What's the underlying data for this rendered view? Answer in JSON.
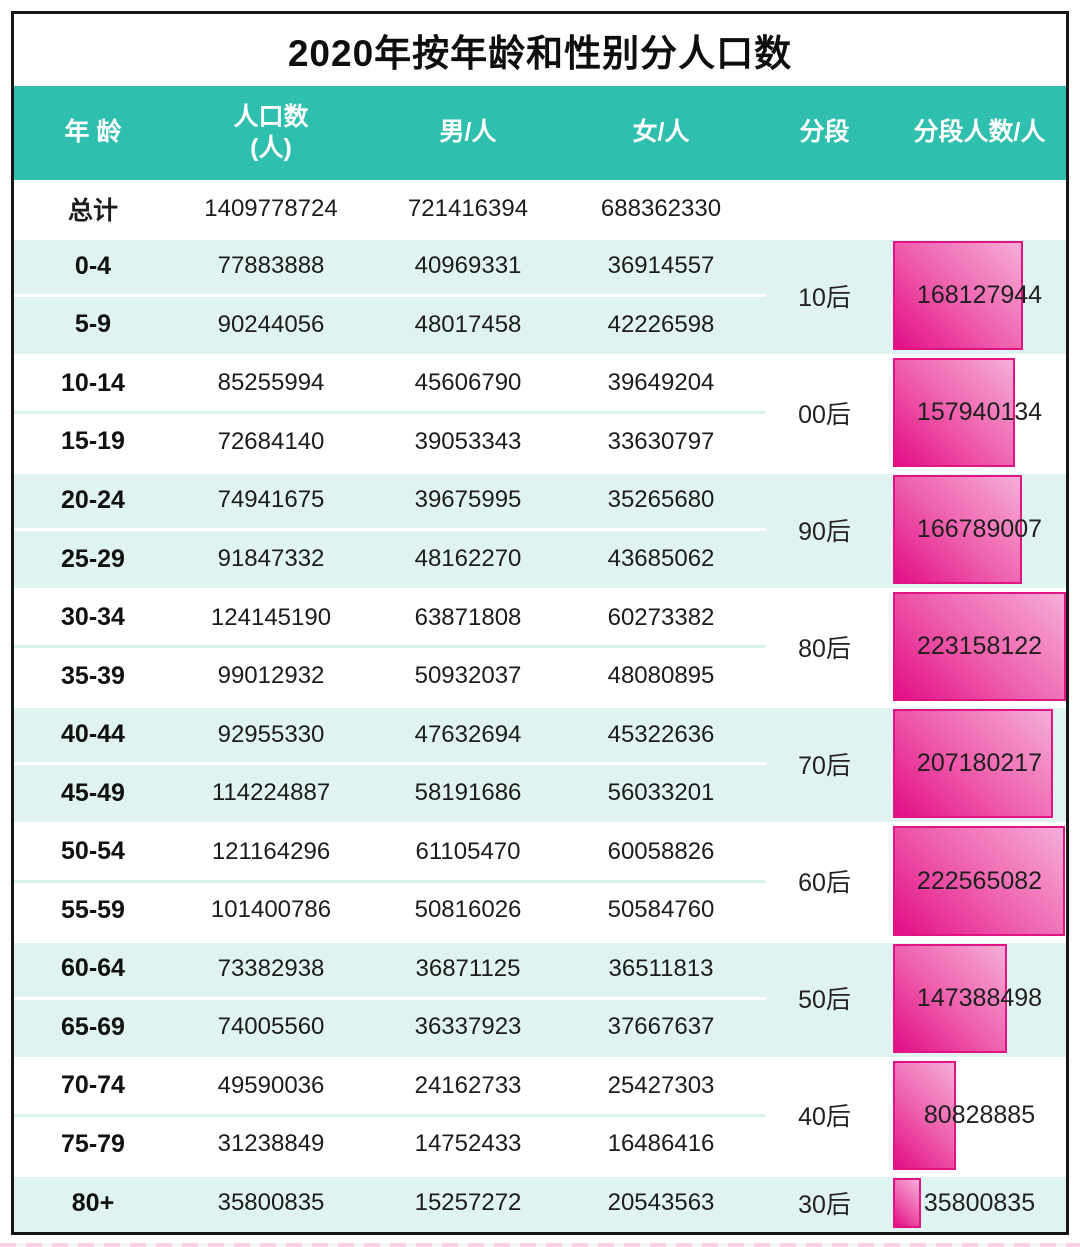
{
  "title": "2020年按年龄和性别分人口数",
  "header": {
    "age": "年 龄",
    "population_line1": "人口数",
    "population_line2": "(人)",
    "male": "男/人",
    "female": "女/人",
    "segment": "分段",
    "segment_count": "分段人数/人"
  },
  "total": {
    "label": "总计",
    "population": "1409778724",
    "male": "721416394",
    "female": "688362330"
  },
  "groups": [
    {
      "segment": "10后",
      "count": "168127944",
      "rows": [
        {
          "age": "0-4",
          "population": "77883888",
          "male": "40969331",
          "female": "36914557"
        },
        {
          "age": "5-9",
          "population": "90244056",
          "male": "48017458",
          "female": "42226598"
        }
      ]
    },
    {
      "segment": "00后",
      "count": "157940134",
      "rows": [
        {
          "age": "10-14",
          "population": "85255994",
          "male": "45606790",
          "female": "39649204"
        },
        {
          "age": "15-19",
          "population": "72684140",
          "male": "39053343",
          "female": "33630797"
        }
      ]
    },
    {
      "segment": "90后",
      "count": "166789007",
      "rows": [
        {
          "age": "20-24",
          "population": "74941675",
          "male": "39675995",
          "female": "35265680"
        },
        {
          "age": "25-29",
          "population": "91847332",
          "male": "48162270",
          "female": "43685062"
        }
      ]
    },
    {
      "segment": "80后",
      "count": "223158122",
      "rows": [
        {
          "age": "30-34",
          "population": "124145190",
          "male": "63871808",
          "female": "60273382"
        },
        {
          "age": "35-39",
          "population": "99012932",
          "male": "50932037",
          "female": "48080895"
        }
      ]
    },
    {
      "segment": "70后",
      "count": "207180217",
      "rows": [
        {
          "age": "40-44",
          "population": "92955330",
          "male": "47632694",
          "female": "45322636"
        },
        {
          "age": "45-49",
          "population": "114224887",
          "male": "58191686",
          "female": "56033201"
        }
      ]
    },
    {
      "segment": "60后",
      "count": "222565082",
      "rows": [
        {
          "age": "50-54",
          "population": "121164296",
          "male": "61105470",
          "female": "60058826"
        },
        {
          "age": "55-59",
          "population": "101400786",
          "male": "50816026",
          "female": "50584760"
        }
      ]
    },
    {
      "segment": "50后",
      "count": "147388498",
      "rows": [
        {
          "age": "60-64",
          "population": "73382938",
          "male": "36871125",
          "female": "36511813"
        },
        {
          "age": "65-69",
          "population": "74005560",
          "male": "36337923",
          "female": "37667637"
        }
      ]
    },
    {
      "segment": "40后",
      "count": "80828885",
      "rows": [
        {
          "age": "70-74",
          "population": "49590036",
          "male": "24162733",
          "female": "25427303"
        },
        {
          "age": "75-79",
          "population": "31238849",
          "male": "14752433",
          "female": "16486416"
        }
      ]
    },
    {
      "segment": "30后",
      "count": "35800835",
      "rows": [
        {
          "age": "80+",
          "population": "35800835",
          "male": "15257272",
          "female": "20543563"
        }
      ]
    }
  ],
  "colors": {
    "header_teal": "#2fbfae",
    "row_mint": "#dff4f0",
    "bar_gradient_dark": "#e30d86",
    "bar_gradient_light": "#f6aed9",
    "bar_border": "#e01583",
    "frame_black": "#161616"
  },
  "chart_data": {
    "type": "table",
    "title": "2020年按年龄和性别分人口数",
    "columns": [
      "年龄",
      "人口数(人)",
      "男/人",
      "女/人",
      "分段",
      "分段人数/人"
    ],
    "total_row": {
      "age": "总计",
      "population": 1409778724,
      "male": 721416394,
      "female": 688362330
    },
    "rows": [
      {
        "age": "0-4",
        "population": 77883888,
        "male": 40969331,
        "female": 36914557,
        "segment": "10后"
      },
      {
        "age": "5-9",
        "population": 90244056,
        "male": 48017458,
        "female": 42226598,
        "segment": "10后"
      },
      {
        "age": "10-14",
        "population": 85255994,
        "male": 45606790,
        "female": 39649204,
        "segment": "00后"
      },
      {
        "age": "15-19",
        "population": 72684140,
        "male": 39053343,
        "female": 33630797,
        "segment": "00后"
      },
      {
        "age": "20-24",
        "population": 74941675,
        "male": 39675995,
        "female": 35265680,
        "segment": "90后"
      },
      {
        "age": "25-29",
        "population": 91847332,
        "male": 48162270,
        "female": 43685062,
        "segment": "90后"
      },
      {
        "age": "30-34",
        "population": 124145190,
        "male": 63871808,
        "female": 60273382,
        "segment": "80后"
      },
      {
        "age": "35-39",
        "population": 99012932,
        "male": 50932037,
        "female": 48080895,
        "segment": "80后"
      },
      {
        "age": "40-44",
        "population": 92955330,
        "male": 47632694,
        "female": 45322636,
        "segment": "70后"
      },
      {
        "age": "45-49",
        "population": 114224887,
        "male": 58191686,
        "female": 56033201,
        "segment": "70后"
      },
      {
        "age": "50-54",
        "population": 121164296,
        "male": 61105470,
        "female": 60058826,
        "segment": "60后"
      },
      {
        "age": "55-59",
        "population": 101400786,
        "male": 50816026,
        "female": 50584760,
        "segment": "60后"
      },
      {
        "age": "60-64",
        "population": 73382938,
        "male": 36871125,
        "female": 36511813,
        "segment": "50后"
      },
      {
        "age": "65-69",
        "population": 74005560,
        "male": 36337923,
        "female": 37667637,
        "segment": "50后"
      },
      {
        "age": "70-74",
        "population": 49590036,
        "male": 24162733,
        "female": 25427303,
        "segment": "40后"
      },
      {
        "age": "75-79",
        "population": 31238849,
        "male": 14752433,
        "female": 16486416,
        "segment": "40后"
      },
      {
        "age": "80+",
        "population": 35800835,
        "male": 15257272,
        "female": 20543563,
        "segment": "30后"
      }
    ],
    "segment_bars": {
      "type": "bar",
      "orientation": "horizontal",
      "categories": [
        "10后",
        "00后",
        "90后",
        "80后",
        "70后",
        "60后",
        "50后",
        "40后",
        "30后"
      ],
      "values": [
        168127944,
        157940134,
        166789007,
        223158122,
        207180217,
        222565082,
        147388498,
        80828885,
        35800835
      ],
      "value_axis_range": [
        0,
        223158122
      ],
      "legend": "none",
      "grid": false
    }
  }
}
